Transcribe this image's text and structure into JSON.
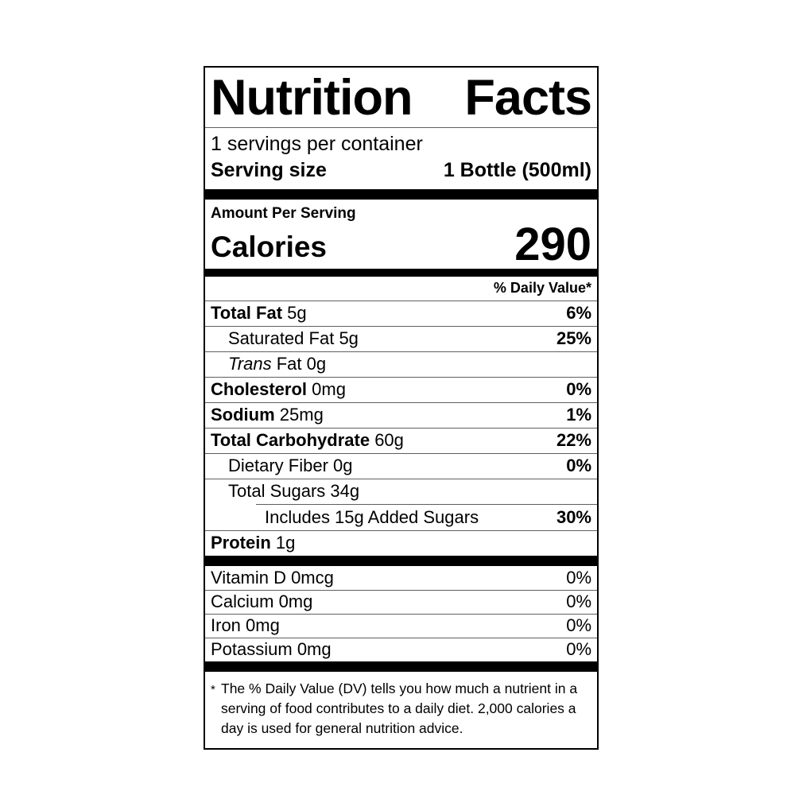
{
  "label": {
    "title": {
      "word1": "Nutrition",
      "word2": "Facts"
    },
    "servings_per_container": "1 servings per container",
    "serving_size_label": "Serving size",
    "serving_size_value": "1 Bottle (500ml)",
    "amount_per_serving": "Amount Per Serving",
    "calories_label": "Calories",
    "calories_value": "290",
    "daily_value_header": "% Daily Value*",
    "nutrients": {
      "total_fat": {
        "name": "Total Fat",
        "amount": "5g",
        "dv": "6%"
      },
      "saturated_fat": {
        "name": "Saturated Fat",
        "amount": "5g",
        "dv": "25%"
      },
      "trans_fat": {
        "name": "Trans",
        "rest": "Fat 0g"
      },
      "cholesterol": {
        "name": "Cholesterol",
        "amount": "0mg",
        "dv": "0%"
      },
      "sodium": {
        "name": "Sodium",
        "amount": "25mg",
        "dv": "1%"
      },
      "total_carbohydrate": {
        "name": "Total Carbohydrate",
        "amount": "60g",
        "dv": "22%"
      },
      "dietary_fiber": {
        "name": "Dietary Fiber",
        "amount": "0g",
        "dv": "0%"
      },
      "total_sugars": {
        "name": "Total Sugars",
        "amount": "34g"
      },
      "added_sugars": {
        "name": "Includes 15g Added Sugars",
        "dv": "30%"
      },
      "protein": {
        "name": "Protein",
        "amount": "1g"
      }
    },
    "vitamins": {
      "vitamin_d": {
        "name": "Vitamin D 0mcg",
        "dv": "0%"
      },
      "calcium": {
        "name": "Calcium 0mg",
        "dv": "0%"
      },
      "iron": {
        "name": "Iron 0mg",
        "dv": "0%"
      },
      "potassium": {
        "name": "Potassium 0mg",
        "dv": "0%"
      }
    },
    "footnote": {
      "asterisk": "*",
      "line1": "The % Daily Value (DV) tells you how much a nutrient in a",
      "line2": "serving of food contributes to a daily diet. 2,000 calories a",
      "line3": "day is used for general nutrition advice."
    },
    "colors": {
      "text": "#000000",
      "background": "#ffffff",
      "hairline": "#5f5f5f"
    }
  }
}
